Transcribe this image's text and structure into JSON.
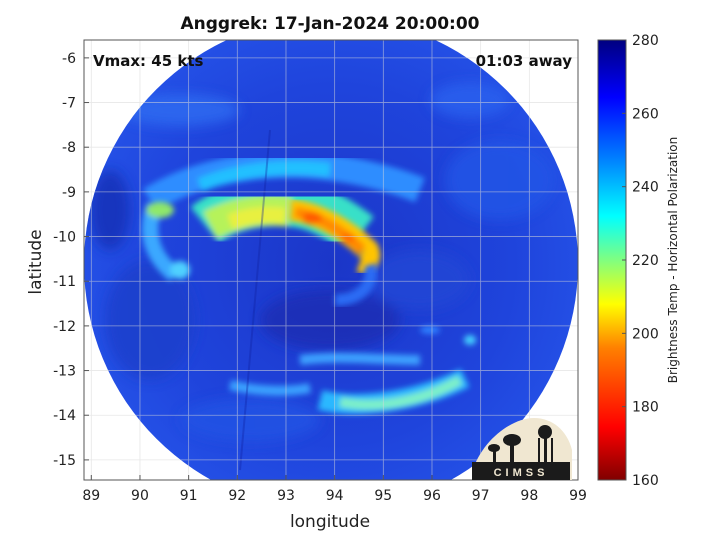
{
  "title": "Anggrek: 17-Jan-2024 20:00:00",
  "vmax_text": "Vmax: 45 kts",
  "time_text": "01:03 away",
  "xlabel": "longitude",
  "ylabel": "latitude",
  "colorbar_label": "Brightness Temp - Horizontal Polarization",
  "logo_text": "CIMSS",
  "colors": {
    "colormap": [
      "#800000",
      "#ff0000",
      "#ff8000",
      "#ffff00",
      "#80ff80",
      "#00ffff",
      "#0080ff",
      "#0000ff",
      "#000080"
    ],
    "background_ocean": "#1a3cd8",
    "axes_frame": "#555555",
    "grid": "#d8d8d8"
  },
  "chart_data": {
    "type": "heatmap",
    "title": "Anggrek: 17-Jan-2024 20:00:00",
    "xlabel": "longitude",
    "ylabel": "latitude",
    "xlim": [
      88.85,
      99
    ],
    "ylim": [
      -15.45,
      -5.6
    ],
    "xticks": [
      89,
      90,
      91,
      92,
      93,
      94,
      95,
      96,
      97,
      98,
      99
    ],
    "yticks": [
      -6,
      -7,
      -8,
      -9,
      -10,
      -11,
      -12,
      -13,
      -14,
      -15
    ],
    "grid": true,
    "colorbar": {
      "label": "Brightness Temp - Horizontal Polarization",
      "range": [
        160,
        280
      ],
      "ticks": [
        160,
        180,
        200,
        220,
        240,
        260,
        280
      ]
    },
    "swath": {
      "center": [
        94.5,
        -10.0
      ],
      "radius_deg": 5.1
    },
    "features": [
      {
        "name": "central cold band",
        "lon": [
          91.5,
          94.5
        ],
        "lat": [
          -9.3,
          -10.3
        ],
        "tb": 210
      },
      {
        "name": "curved band core",
        "lon": [
          93.3,
          95.0
        ],
        "lat": [
          -9.4,
          -10.6
        ],
        "tb": 195
      },
      {
        "name": "western arc",
        "lon": [
          89.8,
          91.5
        ],
        "lat": [
          -9.0,
          -11.2
        ],
        "tb": 240
      },
      {
        "name": "southern band",
        "lon": [
          93.5,
          97.2
        ],
        "lat": [
          -13.0,
          -14.0
        ],
        "tb": 235
      },
      {
        "name": "northern arc",
        "lon": [
          91.0,
          94.5
        ],
        "lat": [
          -8.2,
          -9.0
        ],
        "tb": 238
      }
    ]
  }
}
